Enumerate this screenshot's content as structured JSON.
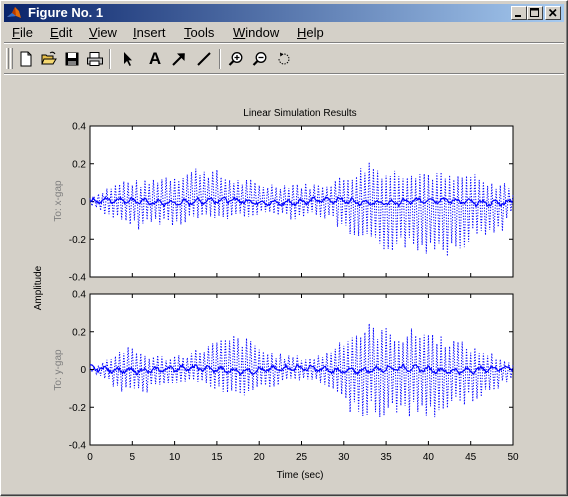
{
  "window": {
    "title": "Figure No. 1"
  },
  "menu": {
    "items": [
      {
        "label": "File",
        "underline_index": 0
      },
      {
        "label": "Edit",
        "underline_index": 0
      },
      {
        "label": "View",
        "underline_index": 0
      },
      {
        "label": "Insert",
        "underline_index": 0
      },
      {
        "label": "Tools",
        "underline_index": 0
      },
      {
        "label": "Window",
        "underline_index": 0
      },
      {
        "label": "Help",
        "underline_index": 0
      }
    ]
  },
  "toolbar": {
    "tools": [
      {
        "name": "new-figure-icon"
      },
      {
        "name": "open-file-icon"
      },
      {
        "name": "save-icon"
      },
      {
        "name": "print-icon"
      },
      {
        "name": "edit-plot-arrow-icon"
      },
      {
        "name": "insert-text-icon"
      },
      {
        "name": "insert-arrow-icon"
      },
      {
        "name": "insert-line-icon"
      },
      {
        "name": "zoom-in-icon"
      },
      {
        "name": "zoom-out-icon"
      },
      {
        "name": "rotate-3d-icon"
      }
    ],
    "text_tool_label": "A"
  },
  "plot": {
    "title": "Linear Simulation Results",
    "xlabel": "Time (sec)",
    "ylabel": "Amplitude",
    "subplot_labels": [
      "To: x-gap",
      "To: y-gap"
    ],
    "colors": {
      "background": "#ffffff",
      "axes": "#000000",
      "line": "#0000ff",
      "figure": "#d4d0c8"
    }
  },
  "chart_data": [
    {
      "type": "line",
      "title": "Linear Simulation Results",
      "ylabel": "To: x-gap",
      "xlim": [
        0,
        50
      ],
      "ylim": [
        -0.4,
        0.4
      ],
      "xticks": [],
      "yticks": [
        "-0.4",
        "-0.2",
        "0",
        "0.2",
        "0.4"
      ],
      "series": [
        {
          "style": "dotted",
          "x": [
            0,
            1,
            2,
            3,
            4,
            5,
            6,
            7,
            8,
            9,
            10,
            11,
            12,
            13,
            14,
            15,
            16,
            17,
            18,
            19,
            20,
            21,
            22,
            23,
            24,
            25,
            26,
            27,
            28,
            29,
            30,
            31,
            32,
            33,
            34,
            35,
            36,
            37,
            38,
            39,
            40,
            41,
            42,
            43,
            44,
            45,
            46,
            47,
            48,
            49,
            50
          ],
          "envelope_upper": [
            0.02,
            0.05,
            0.08,
            0.1,
            0.12,
            0.12,
            0.11,
            0.12,
            0.14,
            0.15,
            0.16,
            0.17,
            0.18,
            0.2,
            0.19,
            0.17,
            0.15,
            0.13,
            0.12,
            0.12,
            0.1,
            0.1,
            0.1,
            0.1,
            0.11,
            0.1,
            0.1,
            0.1,
            0.11,
            0.13,
            0.14,
            0.17,
            0.19,
            0.24,
            0.2,
            0.17,
            0.18,
            0.18,
            0.19,
            0.18,
            0.17,
            0.17,
            0.15,
            0.14,
            0.15,
            0.16,
            0.13,
            0.1,
            0.1,
            0.11,
            0.05
          ],
          "envelope_lower": [
            -0.02,
            -0.05,
            -0.08,
            -0.1,
            -0.14,
            -0.15,
            -0.15,
            -0.13,
            -0.12,
            -0.13,
            -0.14,
            -0.12,
            -0.1,
            -0.1,
            -0.1,
            -0.1,
            -0.1,
            -0.09,
            -0.09,
            -0.08,
            -0.08,
            -0.07,
            -0.07,
            -0.08,
            -0.1,
            -0.09,
            -0.08,
            -0.08,
            -0.1,
            -0.13,
            -0.18,
            -0.22,
            -0.25,
            -0.27,
            -0.28,
            -0.28,
            -0.26,
            -0.24,
            -0.3,
            -0.3,
            -0.28,
            -0.26,
            -0.3,
            -0.27,
            -0.25,
            -0.22,
            -0.2,
            -0.19,
            -0.18,
            -0.15,
            -0.05
          ]
        },
        {
          "style": "solid",
          "amplitude": 0.02
        }
      ]
    },
    {
      "type": "line",
      "ylabel": "To: y-gap",
      "xlabel": "Time (sec)",
      "xlim": [
        0,
        50
      ],
      "ylim": [
        -0.4,
        0.4
      ],
      "xticks": [
        "0",
        "5",
        "10",
        "15",
        "20",
        "25",
        "30",
        "35",
        "40",
        "45",
        "50"
      ],
      "yticks": [
        "-0.4",
        "-0.2",
        "0",
        "0.2",
        "0.4"
      ],
      "series": [
        {
          "style": "dotted",
          "x": [
            0,
            1,
            2,
            3,
            4,
            5,
            6,
            7,
            8,
            9,
            10,
            11,
            12,
            13,
            14,
            15,
            16,
            17,
            18,
            19,
            20,
            21,
            22,
            23,
            24,
            25,
            26,
            27,
            28,
            29,
            30,
            31,
            32,
            33,
            34,
            35,
            36,
            37,
            38,
            39,
            40,
            41,
            42,
            43,
            44,
            45,
            46,
            47,
            48,
            49,
            50
          ],
          "envelope_upper": [
            0.01,
            0.03,
            0.06,
            0.09,
            0.12,
            0.12,
            0.1,
            0.08,
            0.08,
            0.07,
            0.08,
            0.09,
            0.1,
            0.12,
            0.14,
            0.16,
            0.17,
            0.19,
            0.18,
            0.16,
            0.13,
            0.1,
            0.09,
            0.08,
            0.08,
            0.07,
            0.07,
            0.08,
            0.1,
            0.14,
            0.19,
            0.21,
            0.23,
            0.25,
            0.24,
            0.23,
            0.22,
            0.2,
            0.22,
            0.23,
            0.22,
            0.2,
            0.18,
            0.17,
            0.15,
            0.13,
            0.11,
            0.1,
            0.08,
            0.06,
            0.03
          ],
          "envelope_lower": [
            -0.01,
            -0.04,
            -0.07,
            -0.1,
            -0.13,
            -0.15,
            -0.14,
            -0.12,
            -0.09,
            -0.08,
            -0.07,
            -0.07,
            -0.07,
            -0.08,
            -0.1,
            -0.12,
            -0.15,
            -0.16,
            -0.15,
            -0.14,
            -0.12,
            -0.1,
            -0.09,
            -0.08,
            -0.07,
            -0.06,
            -0.06,
            -0.08,
            -0.1,
            -0.15,
            -0.2,
            -0.24,
            -0.25,
            -0.24,
            -0.26,
            -0.27,
            -0.24,
            -0.25,
            -0.26,
            -0.27,
            -0.28,
            -0.25,
            -0.24,
            -0.22,
            -0.2,
            -0.18,
            -0.16,
            -0.14,
            -0.12,
            -0.08,
            -0.04
          ]
        },
        {
          "style": "solid",
          "amplitude": 0.02
        }
      ]
    }
  ]
}
